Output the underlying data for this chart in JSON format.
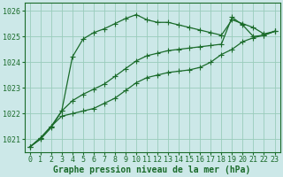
{
  "title": "Graphe pression niveau de la mer (hPa)",
  "bg_color": "#cce8e8",
  "grid_color": "#99ccbb",
  "line_color": "#1a6b2a",
  "border_color": "#1a6b2a",
  "xlim": [
    -0.5,
    23.5
  ],
  "ylim": [
    1020.5,
    1026.3
  ],
  "yticks": [
    1021,
    1022,
    1023,
    1024,
    1025,
    1026
  ],
  "xticks": [
    0,
    1,
    2,
    3,
    4,
    5,
    6,
    7,
    8,
    9,
    10,
    11,
    12,
    13,
    14,
    15,
    16,
    17,
    18,
    19,
    20,
    21,
    22,
    23
  ],
  "series": [
    {
      "x": [
        0,
        1,
        2,
        3,
        4,
        5,
        6,
        7,
        8,
        9,
        10,
        11,
        12,
        13,
        14,
        15,
        16,
        17,
        18,
        19,
        20,
        21,
        22,
        23
      ],
      "y": [
        1020.7,
        1021.0,
        1021.45,
        1022.1,
        1024.2,
        1024.9,
        1025.15,
        1025.3,
        1025.5,
        1025.7,
        1025.85,
        1025.65,
        1025.55,
        1025.55,
        1025.45,
        1025.35,
        1025.25,
        1025.15,
        1025.05,
        1025.65,
        1025.5,
        1025.35,
        1025.1,
        1025.2
      ]
    },
    {
      "x": [
        0,
        1,
        2,
        3,
        4,
        5,
        6,
        7,
        8,
        9,
        10,
        11,
        12,
        13,
        14,
        15,
        16,
        17,
        18,
        19,
        20,
        21,
        22,
        23
      ],
      "y": [
        1020.7,
        1021.05,
        1021.5,
        1022.1,
        1022.5,
        1022.75,
        1022.95,
        1023.15,
        1023.45,
        1023.75,
        1024.05,
        1024.25,
        1024.35,
        1024.45,
        1024.5,
        1024.55,
        1024.6,
        1024.65,
        1024.7,
        1025.75,
        1025.45,
        1025.0,
        1025.05,
        1025.2
      ]
    },
    {
      "x": [
        0,
        1,
        2,
        3,
        4,
        5,
        6,
        7,
        8,
        9,
        10,
        11,
        12,
        13,
        14,
        15,
        16,
        17,
        18,
        19,
        20,
        21,
        22,
        23
      ],
      "y": [
        1020.7,
        1021.05,
        1021.5,
        1021.9,
        1022.0,
        1022.1,
        1022.2,
        1022.4,
        1022.6,
        1022.9,
        1023.2,
        1023.4,
        1023.5,
        1023.6,
        1023.65,
        1023.7,
        1023.8,
        1024.0,
        1024.3,
        1024.5,
        1024.8,
        1024.95,
        1025.05,
        1025.2
      ]
    }
  ],
  "marker": "+",
  "markersize": 4,
  "linewidth": 0.9,
  "xlabel_fontsize": 7,
  "tick_fontsize": 6,
  "label_color": "#1a6b2a",
  "fig_width": 3.2,
  "fig_height": 2.0,
  "dpi": 100
}
